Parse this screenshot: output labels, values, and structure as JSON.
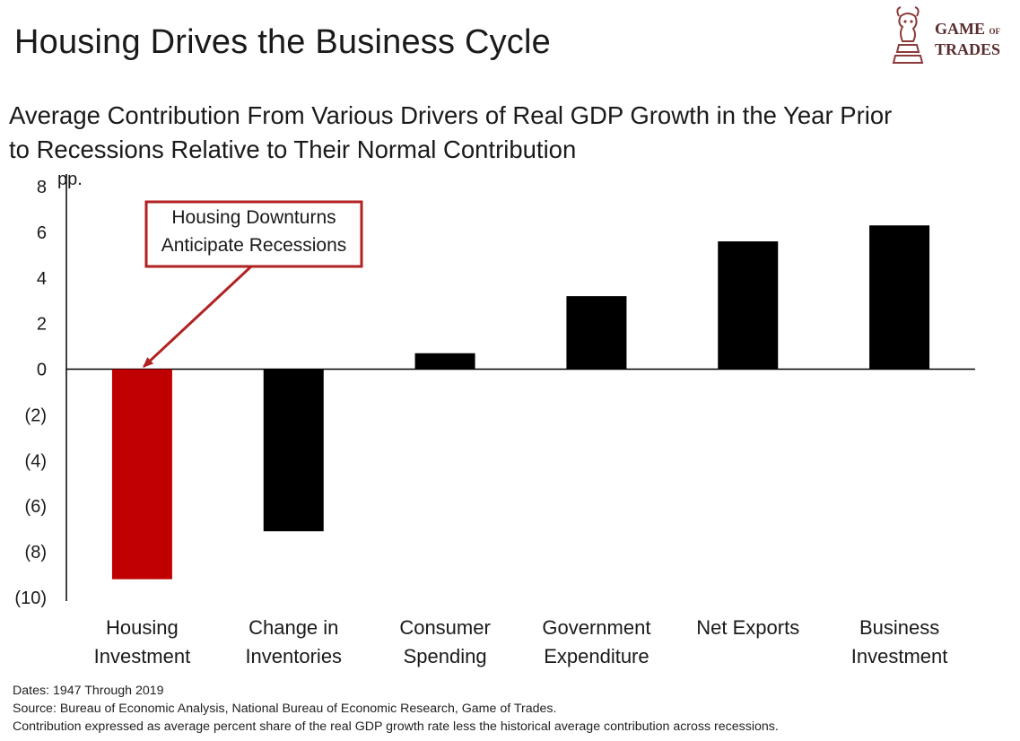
{
  "header": {
    "title": "Housing Drives the Business Cycle",
    "subtitle_line1": "Average Contribution From Various Drivers of Real GDP Growth in the Year Prior",
    "subtitle_line2": "to Recessions Relative to Their Normal Contribution"
  },
  "logo": {
    "text_game": "GAME",
    "text_of": "OF",
    "text_trades": "TRADES",
    "icon": "bull-knight-chess-icon",
    "color": "#8b3a3a"
  },
  "chart_data": {
    "type": "bar",
    "title": "Average Contribution From Various Drivers of Real GDP Growth in the Year Prior to Recessions Relative to Their Normal Contribution",
    "ylabel": "pp.",
    "xlabel": "",
    "ylim": [
      -10,
      8
    ],
    "yticks": [
      8,
      6,
      4,
      2,
      0,
      -2,
      -4,
      -6,
      -8,
      -10
    ],
    "ytick_labels": [
      "8",
      "6",
      "4",
      "2",
      "0",
      "(2)",
      "(4)",
      "(6)",
      "(8)",
      "(10)"
    ],
    "categories": [
      [
        "Housing",
        "Investment"
      ],
      [
        "Change in",
        "Inventories"
      ],
      [
        "Consumer",
        "Spending"
      ],
      [
        "Government",
        "Expenditure"
      ],
      [
        "Net Exports",
        ""
      ],
      [
        "Business",
        "Investment"
      ]
    ],
    "values": [
      -9.2,
      -7.1,
      0.7,
      3.2,
      5.6,
      6.3
    ],
    "colors": [
      "#c00000",
      "#000000",
      "#000000",
      "#000000",
      "#000000",
      "#000000"
    ],
    "grid": false,
    "annotation": {
      "line1": "Housing Downturns",
      "line2": "Anticipate Recessions",
      "target_category_index": 0,
      "color": "#b22222"
    }
  },
  "footer": {
    "dates": "Dates: 1947 Through 2019",
    "source": "Source: Bureau of Economic Analysis, National Bureau of Economic Research, Game of Trades.",
    "note": "Contribution expressed as average percent share of the real GDP growth rate less the historical average contribution across recessions."
  }
}
